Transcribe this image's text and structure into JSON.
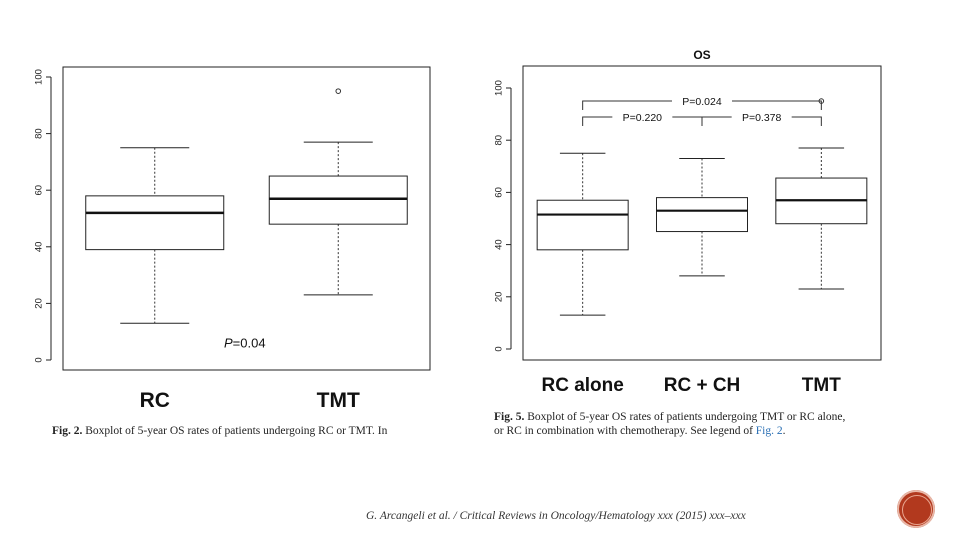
{
  "chart_data": [
    {
      "type": "boxplot",
      "title": "",
      "ylim": [
        0,
        100
      ],
      "yticks": [
        0,
        20,
        40,
        60,
        80,
        100
      ],
      "categories": [
        "RC",
        "TMT"
      ],
      "boxes": [
        {
          "label": "RC",
          "whisker_low": 13,
          "q1": 39,
          "median": 52,
          "q3": 58,
          "whisker_high": 75,
          "outliers": []
        },
        {
          "label": "TMT",
          "whisker_low": 23,
          "q1": 48,
          "median": 57,
          "q3": 65,
          "whisker_high": 77,
          "outliers": [
            95
          ]
        }
      ],
      "annotation": {
        "prefix": "P",
        "value": "=0.04"
      }
    },
    {
      "type": "boxplot",
      "title": "OS",
      "ylim": [
        0,
        100
      ],
      "yticks": [
        0,
        20,
        40,
        60,
        80,
        100
      ],
      "categories": [
        "RC alone",
        "RC + CH",
        "TMT"
      ],
      "boxes": [
        {
          "label": "RC alone",
          "whisker_low": 13,
          "q1": 38,
          "median": 51.5,
          "q3": 57,
          "whisker_high": 75,
          "outliers": []
        },
        {
          "label": "RC + CH",
          "whisker_low": 28,
          "q1": 45,
          "median": 53,
          "q3": 58,
          "whisker_high": 73,
          "outliers": []
        },
        {
          "label": "TMT",
          "whisker_low": 23,
          "q1": 48,
          "median": 57,
          "q3": 65.5,
          "whisker_high": 77,
          "outliers": [
            95
          ]
        }
      ],
      "comparisons": [
        {
          "groups": [
            "RC alone",
            "TMT"
          ],
          "label": "P=0.024"
        },
        {
          "groups": [
            "RC alone",
            "RC + CH"
          ],
          "label": "P=0.220"
        },
        {
          "groups": [
            "RC + CH",
            "TMT"
          ],
          "label": "P=0.378"
        }
      ]
    }
  ],
  "captions": {
    "left": {
      "fig": "Fig. 2.",
      "text": " Boxplot of 5-year OS rates of patients undergoing RC or TMT. In"
    },
    "right": {
      "fig": "Fig. 5.",
      "line1": " Boxplot of 5-year OS rates of patients undergoing TMT or RC alone,",
      "line2": "or RC in combination with chemotherapy. See legend of ",
      "link": "Fig. 2",
      "line2_end": "."
    }
  },
  "citation": "G. Arcangeli et al. / Critical Reviews in Oncology/Hematology xxx (2015) xxx–xxx",
  "colors": {
    "badge": "#b2391e",
    "link": "#2a6fb4"
  }
}
